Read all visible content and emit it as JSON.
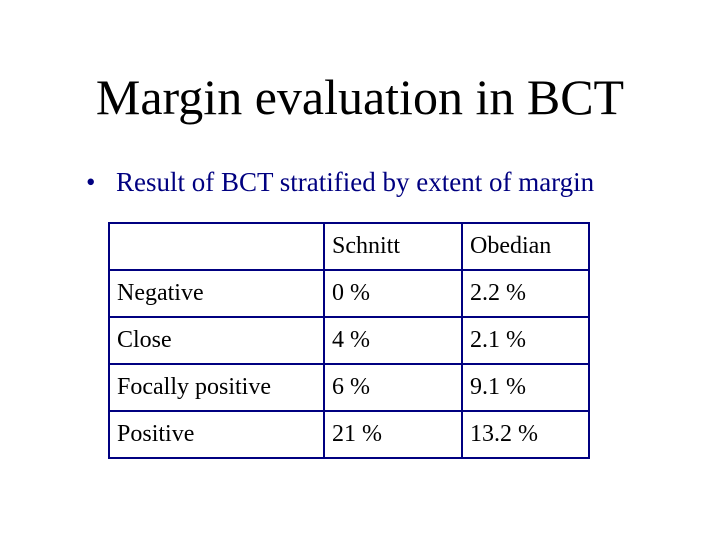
{
  "header": {
    "title": "Margin evaluation in BCT"
  },
  "bullets": [
    "Result of BCT stratified by extent of margin"
  ],
  "table": {
    "columns": [
      "Schnitt",
      "Obedian"
    ],
    "rows": [
      [
        "Negative",
        "0 %",
        "2.2 %"
      ],
      [
        "Close",
        "4 %",
        "2.1 %"
      ],
      [
        "Focally positive",
        "6 %",
        "9.1 %"
      ],
      [
        "Positive",
        "21 %",
        "13.2 %"
      ]
    ]
  }
}
